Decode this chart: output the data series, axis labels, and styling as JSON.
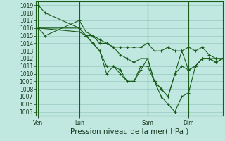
{
  "xlabel": "Pression niveau de la mer( hPa )",
  "bg_color": "#c0e8e0",
  "grid_color": "#98c8c0",
  "line_color": "#1a5c1a",
  "vline_color": "#1a5c1a",
  "spine_color": "#1a5c1a",
  "font_color": "#1a3a20",
  "ylim": [
    1004.5,
    1019.5
  ],
  "yticks": [
    1005,
    1006,
    1007,
    1008,
    1009,
    1010,
    1011,
    1012,
    1013,
    1014,
    1015,
    1016,
    1017,
    1018,
    1019
  ],
  "xtick_labels": [
    "Ven",
    "Lun",
    "Sam",
    "Dim"
  ],
  "xtick_positions": [
    0,
    36,
    96,
    132
  ],
  "xlim": [
    -2,
    162
  ],
  "vline_positions": [
    0,
    36,
    96,
    132
  ],
  "lines": [
    {
      "x": [
        0,
        6,
        36,
        42,
        48,
        54,
        60,
        66,
        72,
        78,
        84,
        90,
        96,
        102,
        108,
        114,
        120,
        126,
        132,
        138,
        144,
        150,
        156,
        162
      ],
      "y": [
        1019,
        1018,
        1016,
        1015,
        1015,
        1014.5,
        1014,
        1013.5,
        1013.5,
        1013.5,
        1013.5,
        1013.5,
        1014,
        1013,
        1013,
        1013.5,
        1013,
        1013,
        1013.5,
        1013,
        1013.5,
        1012.5,
        1012,
        1012
      ]
    },
    {
      "x": [
        0,
        6,
        36,
        42,
        48,
        54,
        60,
        66,
        72,
        78,
        84,
        90,
        96,
        102,
        108,
        114,
        120,
        126,
        132,
        138,
        144,
        150,
        156,
        162
      ],
      "y": [
        1016,
        1015,
        1017,
        1015.5,
        1015,
        1014,
        1014,
        1013.5,
        1012.5,
        1012,
        1011.5,
        1012,
        1012,
        1009,
        1008,
        1007,
        1010,
        1011,
        1010.5,
        1011,
        1012,
        1012,
        1012,
        1012
      ]
    },
    {
      "x": [
        0,
        36,
        42,
        48,
        54,
        60,
        66,
        72,
        78,
        84,
        90,
        96,
        102,
        108,
        114,
        120,
        126,
        132,
        138,
        144,
        150,
        156,
        162
      ],
      "y": [
        1016,
        1015.5,
        1015,
        1014,
        1013,
        1011,
        1011,
        1010,
        1009,
        1009,
        1011,
        1011,
        1009,
        1008,
        1007,
        1010,
        1013,
        1010.5,
        1011,
        1012,
        1012,
        1011.5,
        1012
      ]
    },
    {
      "x": [
        0,
        36,
        42,
        48,
        54,
        60,
        66,
        72,
        78,
        84,
        90,
        96,
        102,
        108,
        114,
        120,
        126,
        132,
        138,
        144,
        150,
        156,
        162
      ],
      "y": [
        1016,
        1016,
        1015,
        1014,
        1013,
        1010,
        1011,
        1010.5,
        1009,
        1009,
        1010.5,
        1012,
        1009,
        1007,
        1006,
        1005,
        1007,
        1007.5,
        1011,
        1012,
        1012,
        1011.5,
        1012
      ]
    }
  ],
  "tick_font_size": 5.5,
  "xlabel_font_size": 7.5,
  "linewidth": 0.8,
  "markersize": 3
}
